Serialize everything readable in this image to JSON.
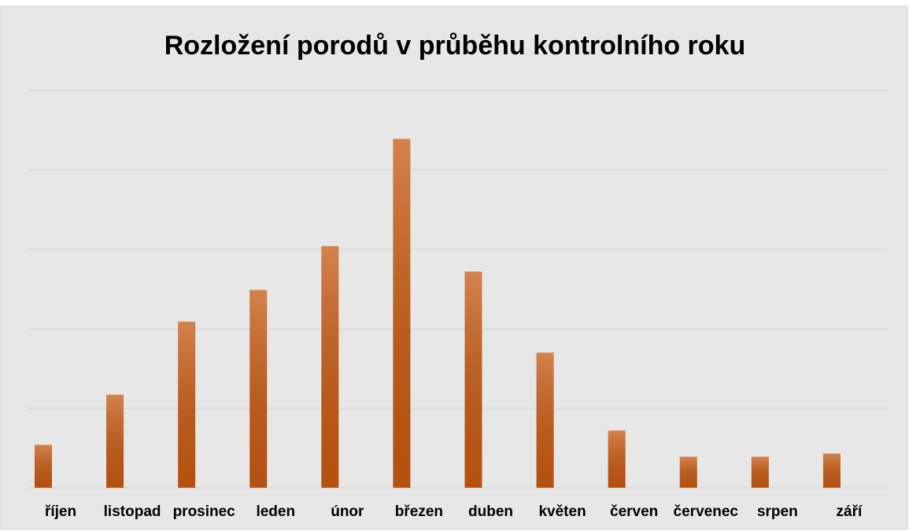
{
  "chart_data": {
    "type": "bar",
    "title": "Rozložení porodů v průběhu kontrolního roku",
    "categories": [
      "říjen",
      "listopad",
      "prosinec",
      "leden",
      "únor",
      "březen",
      "duben",
      "květen",
      "červen",
      "červenec",
      "srpen",
      "září"
    ],
    "values": [
      0.54,
      1.17,
      2.09,
      2.49,
      3.04,
      4.39,
      2.72,
      1.7,
      0.72,
      0.39,
      0.39,
      0.43
    ],
    "color": "#c65911",
    "ylim": [
      0,
      5
    ],
    "yticks": [
      0,
      1,
      2,
      3,
      4,
      5
    ],
    "grid": true
  }
}
